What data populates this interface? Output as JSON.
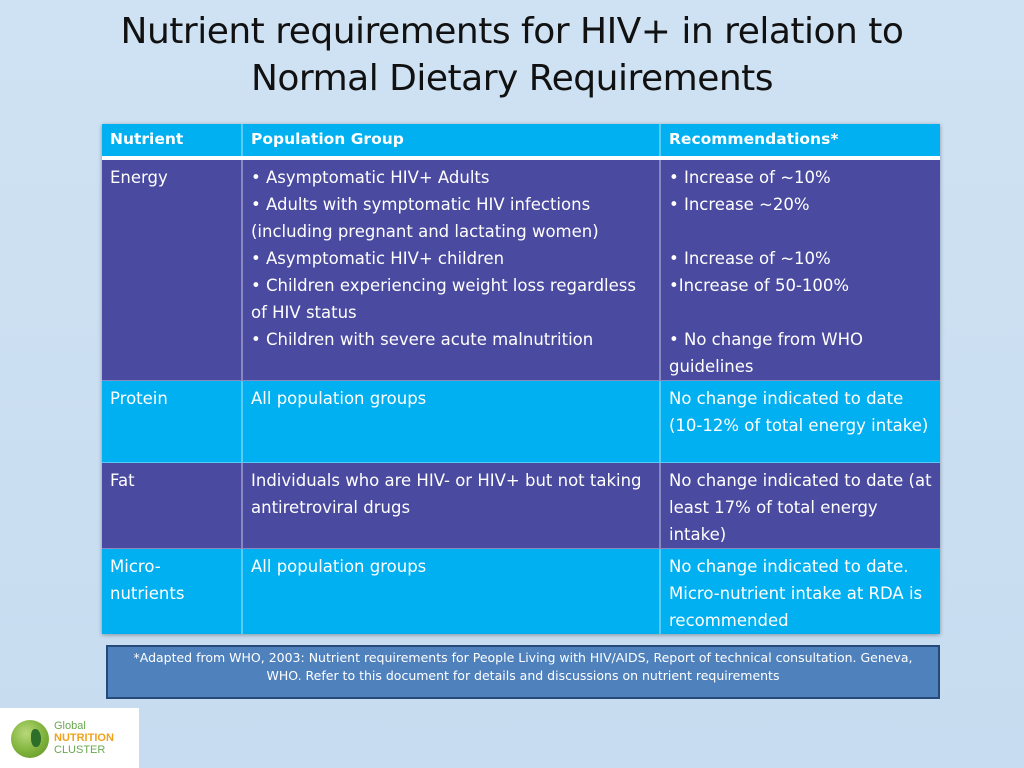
{
  "title_line1": "Nutrient requirements for HIV+ in relation to",
  "title_line2": "Normal Dietary Requirements",
  "table": {
    "headers": [
      "Nutrient",
      "Population Group",
      "Recommendations*"
    ],
    "rows": [
      {
        "nutrient": "Energy",
        "population": [
          "• Asymptomatic HIV+ Adults",
          "• Adults with symptomatic HIV infections (including pregnant and lactating women)",
          "• Asymptomatic HIV+ children",
          "• Children experiencing weight loss regardless of HIV status",
          "• Children with severe acute malnutrition"
        ],
        "recommendations": [
          "• Increase of ~10%",
          "• Increase ~20%",
          "",
          "• Increase of ~10%",
          "•Increase of 50-100%",
          "",
          "• No change from WHO guidelines"
        ]
      },
      {
        "nutrient": "Protein",
        "population": "All population groups",
        "recommendations": "No change indicated to date (10-12% of total energy intake)"
      },
      {
        "nutrient": "Fat",
        "population": "Individuals who are HIV- or HIV+ but not taking antiretroviral drugs",
        "recommendations": "No change indicated to date (at least 17% of total energy intake)"
      },
      {
        "nutrient": "Micro-nutrients",
        "population": "All population groups",
        "recommendations": "No change indicated to date. Micro-nutrient intake at RDA is recommended"
      }
    ]
  },
  "footnote": "*Adapted from WHO, 2003: Nutrient requirements for People Living with HIV/AIDS, Report of technical consultation. Geneva, WHO. Refer to this document for details and discussions on nutrient requirements",
  "logo": {
    "line1": "Global",
    "line2": "NUTRITION",
    "line3": "CLUSTER"
  },
  "colors": {
    "header_bg": "#00b0f0",
    "row_dark": "#4a4aa0",
    "row_light": "#00b0f0",
    "footnote_bg": "#4f81bd"
  }
}
